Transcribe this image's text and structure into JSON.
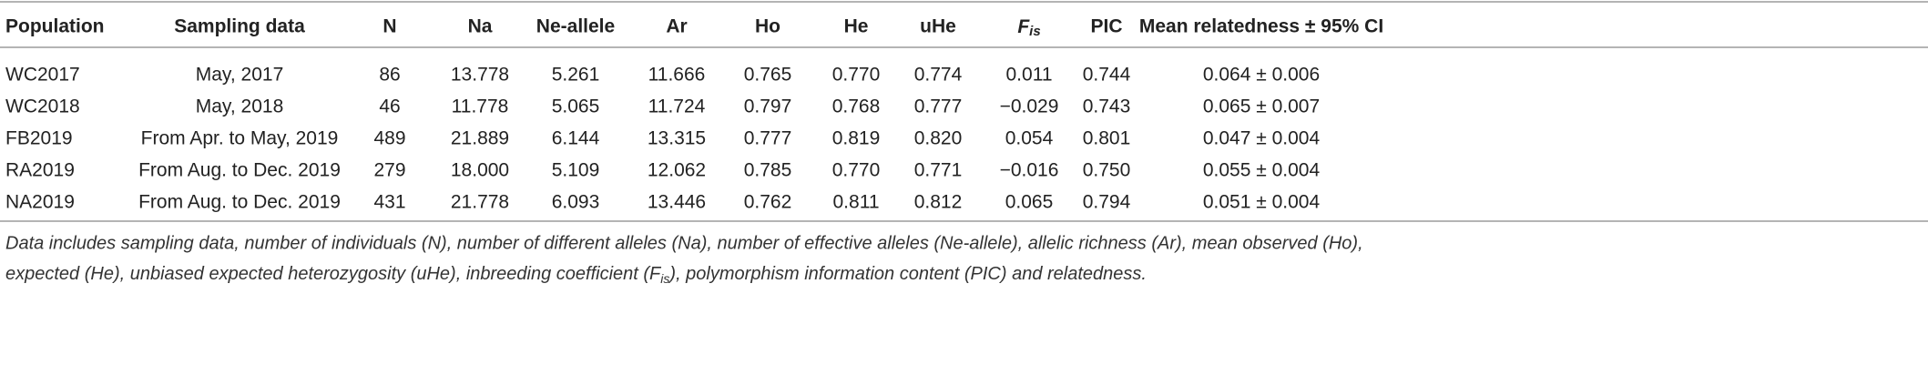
{
  "table": {
    "header": [
      "Population",
      "Sampling data",
      "N",
      "Na",
      "Ne-allele",
      "Ar",
      "Ho",
      "He",
      "uHe",
      {
        "text": "F",
        "subscript": "is"
      },
      "PIC",
      "Mean relatedness ± 95% CI"
    ],
    "rows": [
      [
        "WC2017",
        "May, 2017",
        "86",
        "13.778",
        "5.261",
        "11.666",
        "0.765",
        "0.770",
        "0.774",
        "0.011",
        "0.744",
        "0.064 ± 0.006"
      ],
      [
        "WC2018",
        "May, 2018",
        "46",
        "11.778",
        "5.065",
        "11.724",
        "0.797",
        "0.768",
        "0.777",
        "−0.029",
        "0.743",
        "0.065 ± 0.007"
      ],
      [
        "FB2019",
        "From Apr. to May, 2019",
        "489",
        "21.889",
        "6.144",
        "13.315",
        "0.777",
        "0.819",
        "0.820",
        "0.054",
        "0.801",
        "0.047 ± 0.004"
      ],
      [
        "RA2019",
        "From Aug. to Dec. 2019",
        "279",
        "18.000",
        "5.109",
        "12.062",
        "0.785",
        "0.770",
        "0.771",
        "−0.016",
        "0.750",
        "0.055 ± 0.004"
      ],
      [
        "NA2019",
        "From Aug. to Dec. 2019",
        "431",
        "21.778",
        "6.093",
        "13.446",
        "0.762",
        "0.811",
        "0.812",
        "0.065",
        "0.794",
        "0.051 ± 0.004"
      ]
    ],
    "caption": {
      "line1": "Data includes sampling data, number of individuals (N), number of different alleles (Na), number of effective alleles (Ne-allele), allelic richness (Ar), mean observed (Ho),",
      "line2": "expected (He), unbiased expected heterozygosity (uHe), inbreeding coefficient (F",
      "line2_subscript": "is",
      "line2_end": "), polymorphism information content (PIC) and relatedness.",
      "line3": ""
    }
  }
}
